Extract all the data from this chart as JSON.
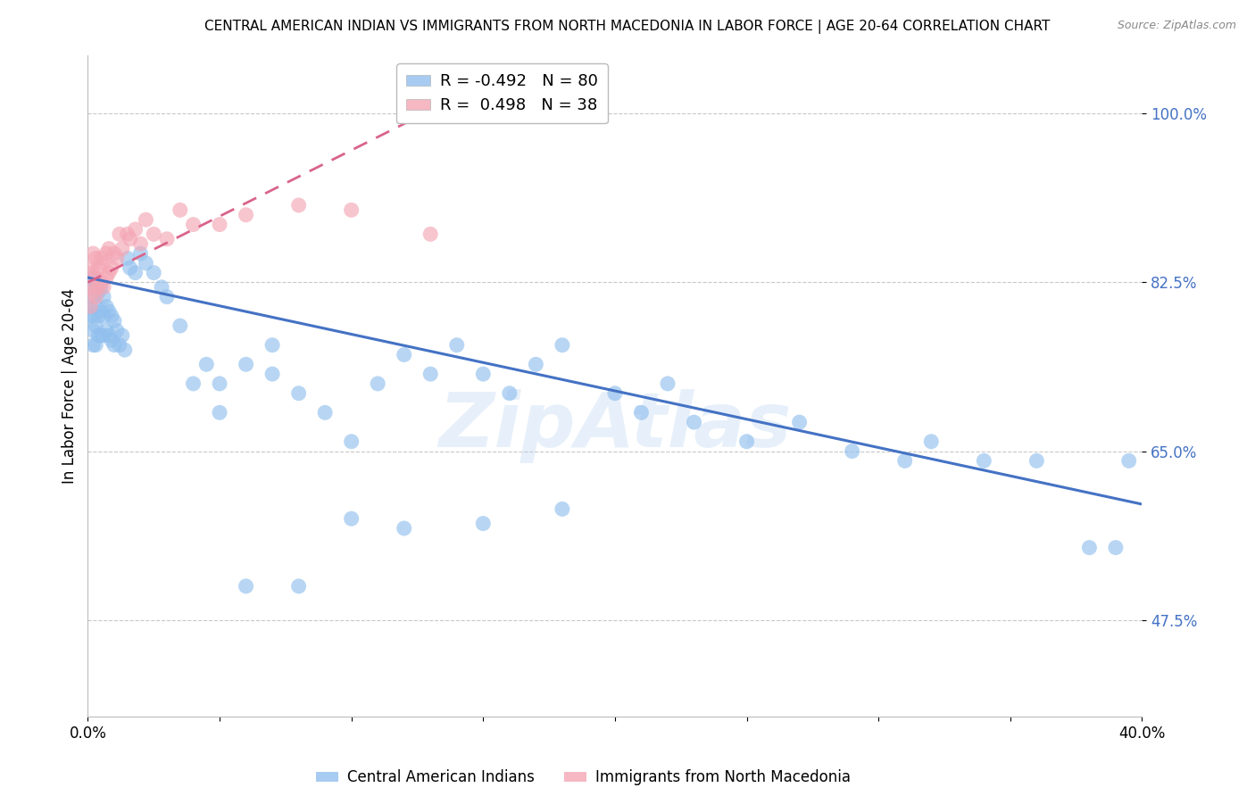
{
  "title": "CENTRAL AMERICAN INDIAN VS IMMIGRANTS FROM NORTH MACEDONIA IN LABOR FORCE | AGE 20-64 CORRELATION CHART",
  "source": "Source: ZipAtlas.com",
  "ylabel": "In Labor Force | Age 20-64",
  "xlim": [
    0.0,
    0.4
  ],
  "ylim": [
    0.375,
    1.06
  ],
  "xticks": [
    0.0,
    0.05,
    0.1,
    0.15,
    0.2,
    0.25,
    0.3,
    0.35,
    0.4
  ],
  "ytick_positions": [
    0.475,
    0.65,
    0.825,
    1.0
  ],
  "ytick_labels": [
    "47.5%",
    "65.0%",
    "82.5%",
    "100.0%"
  ],
  "grid_color": "#c8c8c8",
  "background_color": "#ffffff",
  "blue_color": "#92C0EE",
  "pink_color": "#F4A7B5",
  "blue_line_color": "#4472C4",
  "pink_line_color": "#D9648A",
  "ytick_color": "#4472C4",
  "legend_r_blue": "-0.492",
  "legend_n_blue": "80",
  "legend_r_pink": "0.498",
  "legend_n_pink": "38",
  "watermark": "ZipAtlas",
  "blue_x": [
    0.001,
    0.001,
    0.001,
    0.002,
    0.002,
    0.002,
    0.002,
    0.002,
    0.003,
    0.003,
    0.003,
    0.003,
    0.004,
    0.004,
    0.004,
    0.005,
    0.005,
    0.005,
    0.006,
    0.006,
    0.006,
    0.007,
    0.007,
    0.008,
    0.008,
    0.009,
    0.009,
    0.01,
    0.01,
    0.011,
    0.012,
    0.013,
    0.014,
    0.015,
    0.016,
    0.018,
    0.02,
    0.022,
    0.025,
    0.028,
    0.03,
    0.035,
    0.04,
    0.045,
    0.05,
    0.06,
    0.07,
    0.08,
    0.09,
    0.1,
    0.11,
    0.12,
    0.13,
    0.14,
    0.15,
    0.16,
    0.17,
    0.18,
    0.2,
    0.21,
    0.22,
    0.23,
    0.25,
    0.27,
    0.29,
    0.31,
    0.32,
    0.34,
    0.36,
    0.38,
    0.39,
    0.395,
    0.05,
    0.07,
    0.12,
    0.15,
    0.18,
    0.06,
    0.08,
    0.1
  ],
  "blue_y": [
    0.82,
    0.8,
    0.79,
    0.83,
    0.81,
    0.79,
    0.775,
    0.76,
    0.825,
    0.8,
    0.78,
    0.76,
    0.815,
    0.79,
    0.77,
    0.82,
    0.795,
    0.77,
    0.81,
    0.79,
    0.77,
    0.8,
    0.775,
    0.795,
    0.77,
    0.79,
    0.765,
    0.785,
    0.76,
    0.775,
    0.76,
    0.77,
    0.755,
    0.85,
    0.84,
    0.835,
    0.855,
    0.845,
    0.835,
    0.82,
    0.81,
    0.78,
    0.72,
    0.74,
    0.72,
    0.74,
    0.73,
    0.71,
    0.69,
    0.66,
    0.72,
    0.75,
    0.73,
    0.76,
    0.73,
    0.71,
    0.74,
    0.76,
    0.71,
    0.69,
    0.72,
    0.68,
    0.66,
    0.68,
    0.65,
    0.64,
    0.66,
    0.64,
    0.64,
    0.55,
    0.55,
    0.64,
    0.69,
    0.76,
    0.57,
    0.575,
    0.59,
    0.51,
    0.51,
    0.58
  ],
  "pink_x": [
    0.001,
    0.001,
    0.001,
    0.002,
    0.002,
    0.002,
    0.003,
    0.003,
    0.003,
    0.004,
    0.004,
    0.005,
    0.005,
    0.006,
    0.006,
    0.007,
    0.007,
    0.008,
    0.008,
    0.009,
    0.01,
    0.011,
    0.012,
    0.013,
    0.015,
    0.016,
    0.018,
    0.02,
    0.022,
    0.025,
    0.03,
    0.035,
    0.04,
    0.05,
    0.06,
    0.08,
    0.1,
    0.13
  ],
  "pink_y": [
    0.84,
    0.82,
    0.8,
    0.855,
    0.835,
    0.815,
    0.85,
    0.83,
    0.81,
    0.84,
    0.82,
    0.85,
    0.825,
    0.845,
    0.82,
    0.855,
    0.83,
    0.86,
    0.835,
    0.84,
    0.855,
    0.85,
    0.875,
    0.86,
    0.875,
    0.87,
    0.88,
    0.865,
    0.89,
    0.875,
    0.87,
    0.9,
    0.885,
    0.885,
    0.895,
    0.905,
    0.9,
    0.875
  ],
  "blue_line_x": [
    0.0,
    0.4
  ],
  "blue_line_y": [
    0.83,
    0.595
  ],
  "pink_line_x": [
    0.0,
    0.135
  ],
  "pink_line_y": [
    0.825,
    1.01
  ]
}
